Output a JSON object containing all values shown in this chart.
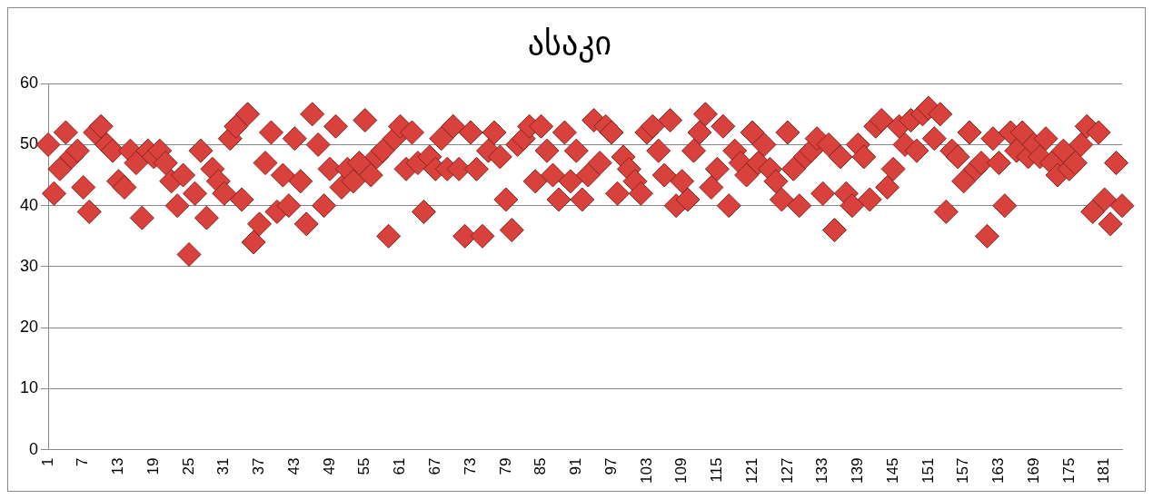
{
  "chart_data": {
    "type": "scatter",
    "title": "ასაკი",
    "marker": "diamond",
    "color": "#d8413c",
    "grid": "y",
    "ylim": [
      0,
      60
    ],
    "yticks": [
      0,
      10,
      20,
      30,
      40,
      50,
      60
    ],
    "categories": [
      "1",
      null,
      null,
      null,
      null,
      null,
      "7",
      null,
      null,
      null,
      null,
      null,
      "13",
      null,
      null,
      null,
      null,
      null,
      "19",
      null,
      null,
      null,
      null,
      null,
      "25",
      null,
      null,
      null,
      null,
      null,
      "31",
      null,
      null,
      null,
      null,
      null,
      "37",
      null,
      null,
      null,
      null,
      null,
      "43",
      null,
      null,
      null,
      null,
      null,
      "49",
      null,
      null,
      null,
      null,
      null,
      "55",
      null,
      null,
      null,
      null,
      null,
      "61",
      null,
      null,
      null,
      null,
      null,
      "67",
      null,
      null,
      null,
      null,
      null,
      "73",
      null,
      null,
      null,
      null,
      null,
      "79",
      null,
      null,
      null,
      null,
      null,
      "85",
      null,
      null,
      null,
      null,
      null,
      "91",
      null,
      null,
      null,
      null,
      null,
      "97",
      null,
      null,
      null,
      null,
      null,
      "103",
      null,
      null,
      null,
      null,
      null,
      "109",
      null,
      null,
      null,
      null,
      null,
      "115",
      null,
      null,
      null,
      null,
      null,
      "121",
      null,
      null,
      null,
      null,
      null,
      "127",
      null,
      null,
      null,
      null,
      null,
      "133",
      null,
      null,
      null,
      null,
      null,
      "139",
      null,
      null,
      null,
      null,
      null,
      "145",
      null,
      null,
      null,
      null,
      null,
      "151",
      null,
      null,
      null,
      null,
      null,
      "157",
      null,
      null,
      null,
      null,
      null,
      "163",
      null,
      null,
      null,
      null,
      null,
      "169",
      null,
      null,
      null,
      null,
      null,
      "175",
      null,
      null,
      null,
      null,
      null,
      "181",
      null,
      null,
      null
    ],
    "values": [
      50,
      42,
      46,
      52,
      48,
      49,
      43,
      39,
      52,
      53,
      50,
      49,
      44,
      43,
      49,
      47,
      38,
      49,
      48,
      49,
      47,
      44,
      40,
      45,
      32,
      42,
      49,
      38,
      46,
      44,
      42,
      51,
      53,
      41,
      55,
      34,
      37,
      47,
      52,
      39,
      45,
      40,
      51,
      44,
      37,
      55,
      50,
      40,
      46,
      53,
      43,
      46,
      44,
      47,
      54,
      45,
      48,
      49,
      35,
      51,
      53,
      46,
      52,
      47,
      39,
      48,
      46,
      51,
      46,
      53,
      46,
      35,
      52,
      46,
      35,
      49,
      52,
      48,
      41,
      36,
      50,
      51,
      53,
      44,
      53,
      49,
      45,
      41,
      52,
      44,
      49,
      41,
      45,
      54,
      47,
      53,
      52,
      42,
      48,
      46,
      44,
      42,
      52,
      53,
      49,
      45,
      54,
      40,
      44,
      41,
      49,
      52,
      55,
      43,
      46,
      53,
      40,
      49,
      47,
      45,
      52,
      47,
      50,
      46,
      44,
      41,
      52,
      46,
      40,
      48,
      49,
      51,
      42,
      50,
      36,
      48,
      42,
      40,
      50,
      48,
      41,
      53,
      54,
      43,
      46,
      53,
      50,
      54,
      49,
      55,
      56,
      51,
      55,
      39,
      49,
      48,
      44,
      52,
      46,
      47,
      35,
      51,
      47,
      40,
      52,
      49,
      52,
      48,
      50,
      48,
      51,
      47,
      45,
      49,
      46,
      47,
      50,
      53,
      39,
      52,
      41,
      37,
      47,
      40
    ]
  }
}
